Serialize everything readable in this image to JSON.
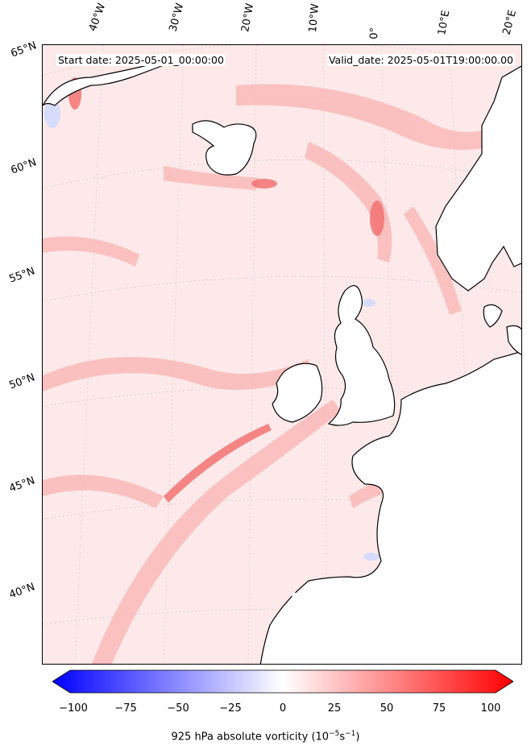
{
  "header": {
    "start_date": "Start date: 2025-05-01_00:00:00",
    "valid_date": "Valid_date: 2025-05-01T19:00:00.00"
  },
  "longitude_labels": [
    "40°W",
    "30°W",
    "20°W",
    "10°W",
    "0°",
    "10°E",
    "20°E"
  ],
  "latitude_labels": [
    "65°N",
    "60°N",
    "55°N",
    "50°N",
    "45°N",
    "40°N"
  ],
  "colorbar": {
    "ticks": [
      "−100",
      "−75",
      "−50",
      "−25",
      "0",
      "25",
      "50",
      "75",
      "100"
    ],
    "label_prefix": "925 hPa absolute vorticity (10",
    "label_exp1": "−5",
    "label_mid": "s",
    "label_exp2": "−1",
    "label_suffix": ")",
    "min_color": "#0000ff",
    "mid_color": "#ffffff",
    "max_color": "#ff0000"
  },
  "colors": {
    "field_background": "#fde9e9",
    "positive_band": "#f9b3b3",
    "strong_positive": "#f26b6b",
    "negative_patch": "#d6dcfb",
    "land_masked": "#ffffff",
    "coastline": "#000000"
  }
}
